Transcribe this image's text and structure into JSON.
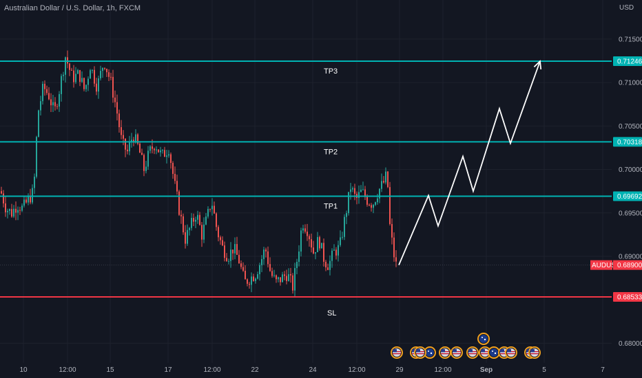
{
  "header": {
    "title": "Australian Dollar / U.S. Dollar, 1h, FXCM",
    "currency": "USD"
  },
  "colors": {
    "background": "#131722",
    "grid": "#1e222d",
    "up": "#26a69a",
    "down": "#ef5350",
    "target_line": "#00b3b3",
    "stop_line": "#f23645",
    "projection": "#ffffff",
    "price_tag": "#f23645"
  },
  "chart_data": {
    "type": "candlestick",
    "symbol": "AUDUSD",
    "y_axis": {
      "ticks": [
        "0.71500",
        "0.71000",
        "0.70500",
        "0.70000",
        "0.69500",
        "0.69000",
        "0.68000"
      ],
      "tick_values": [
        0.715,
        0.71,
        0.705,
        0.7,
        0.695,
        0.69,
        0.68
      ],
      "range": [
        0.676,
        0.7195
      ]
    },
    "x_axis": {
      "ticks": [
        "10",
        "12:00",
        "15",
        "17",
        "12:00",
        "22",
        "24",
        "12:00",
        "29",
        "12:00",
        "Sep",
        "5",
        "7"
      ]
    },
    "levels": [
      {
        "name": "TP3",
        "value": 0.71246,
        "tag": "0.71246",
        "kind": "target"
      },
      {
        "name": "TP2",
        "value": 0.70318,
        "tag": "0.70318",
        "kind": "target"
      },
      {
        "name": "TP1",
        "value": 0.69692,
        "tag": "0.69692",
        "kind": "target"
      },
      {
        "name": "SL",
        "value": 0.68533,
        "tag": "0.68533",
        "kind": "stop"
      }
    ],
    "last_price": {
      "label": "AUDUSD",
      "value": 0.689,
      "tag": "0.68900"
    },
    "price_path": [
      [
        0.6975,
        0
      ],
      [
        0.6955,
        8
      ],
      [
        0.695,
        16
      ],
      [
        0.696,
        24
      ],
      [
        0.6955,
        32
      ],
      [
        0.6965,
        40
      ],
      [
        0.6975,
        48
      ],
      [
        0.7065,
        54
      ],
      [
        0.7095,
        62
      ],
      [
        0.7085,
        70
      ],
      [
        0.7065,
        78
      ],
      [
        0.7095,
        86
      ],
      [
        0.713,
        94
      ],
      [
        0.7105,
        104
      ],
      [
        0.711,
        114
      ],
      [
        0.709,
        122
      ],
      [
        0.712,
        130
      ],
      [
        0.7095,
        140
      ],
      [
        0.7125,
        150
      ],
      [
        0.71,
        160
      ],
      [
        0.707,
        168
      ],
      [
        0.703,
        176
      ],
      [
        0.702,
        184
      ],
      [
        0.704,
        192
      ],
      [
        0.7025,
        200
      ],
      [
        0.7,
        208
      ],
      [
        0.702,
        216
      ],
      [
        0.703,
        224
      ],
      [
        0.7015,
        234
      ],
      [
        0.7025,
        244
      ],
      [
        0.6985,
        252
      ],
      [
        0.695,
        260
      ],
      [
        0.692,
        268
      ],
      [
        0.6935,
        276
      ],
      [
        0.695,
        284
      ],
      [
        0.6925,
        292
      ],
      [
        0.6945,
        300
      ],
      [
        0.6965,
        306
      ],
      [
        0.693,
        314
      ],
      [
        0.691,
        322
      ],
      [
        0.69,
        330
      ],
      [
        0.691,
        338
      ],
      [
        0.6895,
        346
      ],
      [
        0.687,
        354
      ],
      [
        0.6875,
        362
      ],
      [
        0.688,
        370
      ],
      [
        0.6895,
        378
      ],
      [
        0.691,
        384
      ],
      [
        0.688,
        392
      ],
      [
        0.687,
        400
      ],
      [
        0.6875,
        408
      ],
      [
        0.688,
        416
      ],
      [
        0.6865,
        424
      ],
      [
        0.6905,
        432
      ],
      [
        0.694,
        438
      ],
      [
        0.693,
        446
      ],
      [
        0.6905,
        454
      ],
      [
        0.692,
        462
      ],
      [
        0.6895,
        470
      ],
      [
        0.689,
        476
      ],
      [
        0.6905,
        484
      ],
      [
        0.691,
        492
      ],
      [
        0.6945,
        500
      ],
      [
        0.698,
        508
      ],
      [
        0.6965,
        516
      ],
      [
        0.6975,
        524
      ],
      [
        0.6965,
        532
      ],
      [
        0.696,
        540
      ],
      [
        0.6975,
        548
      ],
      [
        0.6985,
        556
      ],
      [
        0.6995,
        561
      ],
      [
        0.6935,
        565
      ],
      [
        0.6905,
        570
      ],
      [
        0.689,
        574
      ]
    ],
    "projection_path": [
      [
        0.689,
        579
      ],
      [
        0.697,
        622
      ],
      [
        0.6935,
        636
      ],
      [
        0.7015,
        672
      ],
      [
        0.6975,
        687
      ],
      [
        0.707,
        725
      ],
      [
        0.703,
        741
      ],
      [
        0.71246,
        784
      ]
    ],
    "event_markers": [
      "flag-us",
      "flag-us",
      "flag-au",
      "flag-us",
      "flag-us",
      "flag-us",
      "flag-us",
      "flag-au",
      "flag-us",
      "flag-au",
      "flag-us",
      "flag-us",
      "flag-us",
      "flag-us"
    ]
  }
}
